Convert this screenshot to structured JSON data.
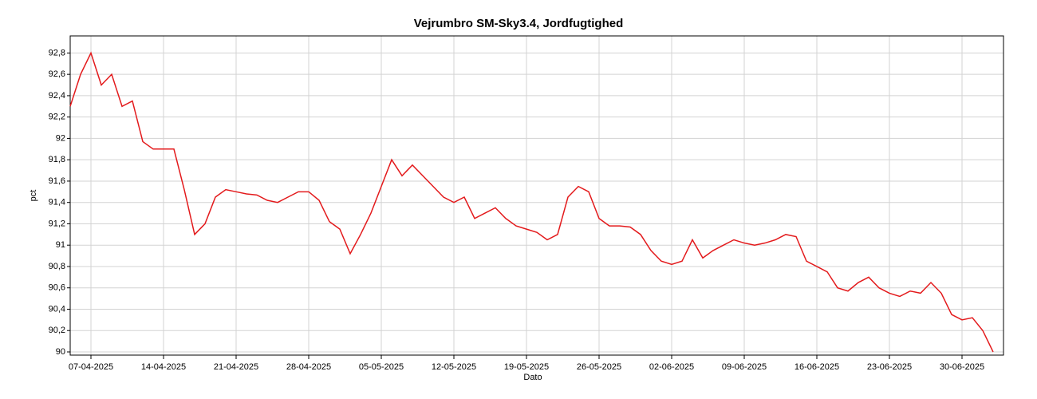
{
  "chart_data": {
    "type": "line",
    "title": "Vejrumbro SM-Sky3.4, Jordfugtighed",
    "xlabel": "Dato",
    "ylabel": "pct",
    "x": [
      "2025-04-05",
      "2025-04-06",
      "2025-04-07",
      "2025-04-08",
      "2025-04-09",
      "2025-04-10",
      "2025-04-11",
      "2025-04-12",
      "2025-04-13",
      "2025-04-14",
      "2025-04-15",
      "2025-04-16",
      "2025-04-17",
      "2025-04-18",
      "2025-04-19",
      "2025-04-20",
      "2025-04-21",
      "2025-04-22",
      "2025-04-23",
      "2025-04-24",
      "2025-04-25",
      "2025-04-26",
      "2025-04-27",
      "2025-04-28",
      "2025-04-29",
      "2025-04-30",
      "2025-05-01",
      "2025-05-02",
      "2025-05-03",
      "2025-05-04",
      "2025-05-05",
      "2025-05-06",
      "2025-05-07",
      "2025-05-08",
      "2025-05-09",
      "2025-05-10",
      "2025-05-11",
      "2025-05-12",
      "2025-05-13",
      "2025-05-14",
      "2025-05-15",
      "2025-05-16",
      "2025-05-17",
      "2025-05-18",
      "2025-05-19",
      "2025-05-20",
      "2025-05-21",
      "2025-05-22",
      "2025-05-23",
      "2025-05-24",
      "2025-05-25",
      "2025-05-26",
      "2025-05-27",
      "2025-05-28",
      "2025-05-29",
      "2025-05-30",
      "2025-05-31",
      "2025-06-01",
      "2025-06-02",
      "2025-06-03",
      "2025-06-04",
      "2025-06-05",
      "2025-06-06",
      "2025-06-07",
      "2025-06-08",
      "2025-06-09",
      "2025-06-10",
      "2025-06-11",
      "2025-06-12",
      "2025-06-13",
      "2025-06-14",
      "2025-06-15",
      "2025-06-16",
      "2025-06-17",
      "2025-06-18",
      "2025-06-19",
      "2025-06-20",
      "2025-06-21",
      "2025-06-22",
      "2025-06-23",
      "2025-06-24",
      "2025-06-25",
      "2025-06-26",
      "2025-06-27",
      "2025-06-28",
      "2025-06-29",
      "2025-06-30",
      "2025-07-01",
      "2025-07-02",
      "2025-07-03"
    ],
    "series": [
      {
        "name": "Jordfugtighed",
        "color": "#e31a1c",
        "values": [
          92.3,
          92.6,
          92.8,
          92.5,
          92.6,
          92.3,
          92.35,
          91.97,
          91.9,
          91.9,
          91.9,
          91.52,
          91.1,
          91.2,
          91.45,
          91.52,
          91.5,
          91.48,
          91.47,
          91.42,
          91.4,
          91.45,
          91.5,
          91.5,
          91.42,
          91.22,
          91.15,
          90.92,
          91.1,
          91.3,
          91.55,
          91.8,
          91.65,
          91.75,
          91.65,
          91.55,
          91.45,
          91.4,
          91.45,
          91.25,
          91.3,
          91.35,
          91.25,
          91.18,
          91.15,
          91.12,
          91.05,
          91.1,
          91.45,
          91.55,
          91.5,
          91.25,
          91.18,
          91.18,
          91.17,
          91.1,
          90.95,
          90.85,
          90.82,
          90.85,
          91.05,
          90.88,
          90.95,
          91.0,
          91.05,
          91.02,
          91.0,
          91.02,
          91.05,
          91.1,
          91.08,
          90.85,
          90.8,
          90.75,
          90.6,
          90.57,
          90.65,
          90.7,
          90.6,
          90.55,
          90.52,
          90.57,
          90.55,
          90.65,
          90.55,
          90.35,
          90.3,
          90.32,
          90.2,
          90.0
        ]
      }
    ],
    "xlim": [
      "2025-04-05",
      "2025-07-04"
    ],
    "xticks": [
      {
        "value": "2025-04-07",
        "label": "07-04-2025"
      },
      {
        "value": "2025-04-14",
        "label": "14-04-2025"
      },
      {
        "value": "2025-04-21",
        "label": "21-04-2025"
      },
      {
        "value": "2025-04-28",
        "label": "28-04-2025"
      },
      {
        "value": "2025-05-05",
        "label": "05-05-2025"
      },
      {
        "value": "2025-05-12",
        "label": "12-05-2025"
      },
      {
        "value": "2025-05-19",
        "label": "19-05-2025"
      },
      {
        "value": "2025-05-26",
        "label": "26-05-2025"
      },
      {
        "value": "2025-06-02",
        "label": "02-06-2025"
      },
      {
        "value": "2025-06-09",
        "label": "09-06-2025"
      },
      {
        "value": "2025-06-16",
        "label": "16-06-2025"
      },
      {
        "value": "2025-06-23",
        "label": "23-06-2025"
      },
      {
        "value": "2025-06-30",
        "label": "30-06-2025"
      }
    ],
    "ylim": [
      89.97,
      92.96
    ],
    "yticks": [
      90,
      {
        "value": 90.2,
        "label": "90,2"
      },
      {
        "value": 90.4,
        "label": "90,4"
      },
      {
        "value": 90.6,
        "label": "90,6"
      },
      {
        "value": 90.8,
        "label": "90,8"
      },
      91,
      {
        "value": 91.2,
        "label": "91,2"
      },
      {
        "value": 91.4,
        "label": "91,4"
      },
      {
        "value": 91.6,
        "label": "91,6"
      },
      {
        "value": 91.8,
        "label": "91,8"
      },
      92,
      {
        "value": 92.2,
        "label": "92,2"
      },
      {
        "value": 92.4,
        "label": "92,4"
      },
      {
        "value": 92.6,
        "label": "92,6"
      },
      {
        "value": 92.8,
        "label": "92,8"
      }
    ],
    "grid": true
  }
}
